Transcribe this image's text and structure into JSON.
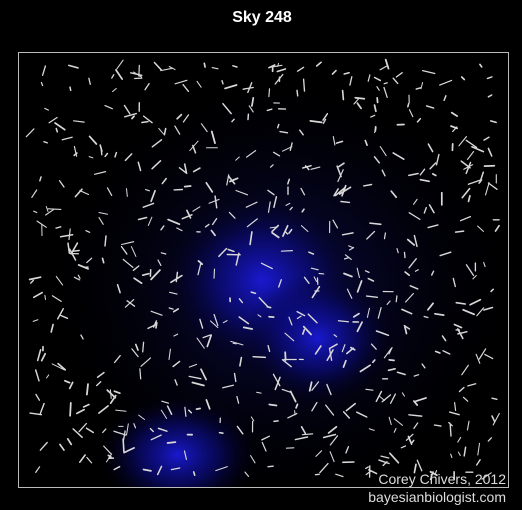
{
  "header": {
    "title": "Sky 248"
  },
  "credits": {
    "author": "Corey Chivers, 2012",
    "site": "bayesianbiologist.com"
  }
}
